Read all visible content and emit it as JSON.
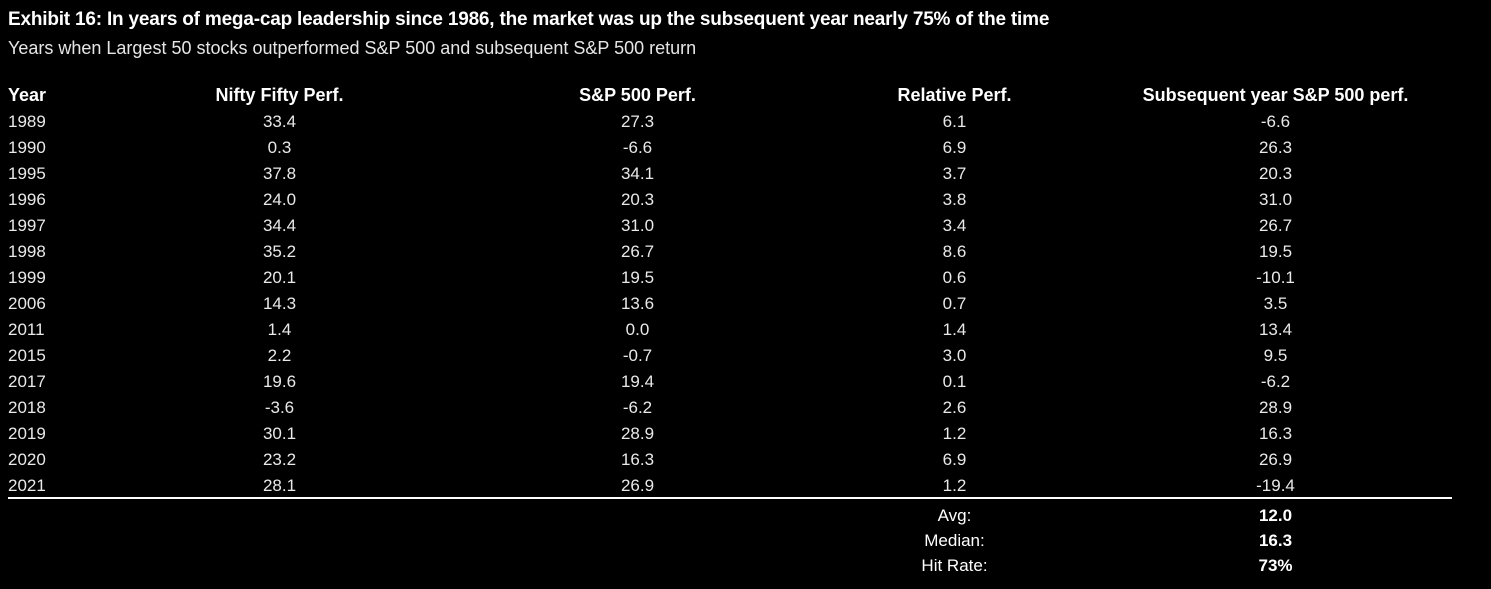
{
  "title": "Exhibit 16: In years of mega-cap leadership since 1986, the market was up the subsequent year nearly 75% of the time",
  "subtitle": "Years when Largest 50 stocks outperformed S&P 500 and subsequent S&P 500 return",
  "columns": [
    "Year",
    "Nifty Fifty Perf.",
    "S&P 500 Perf.",
    "Relative Perf.",
    "Subsequent year S&P 500 perf."
  ],
  "rows": [
    [
      "1989",
      "33.4",
      "27.3",
      "6.1",
      "-6.6"
    ],
    [
      "1990",
      "0.3",
      "-6.6",
      "6.9",
      "26.3"
    ],
    [
      "1995",
      "37.8",
      "34.1",
      "3.7",
      "20.3"
    ],
    [
      "1996",
      "24.0",
      "20.3",
      "3.8",
      "31.0"
    ],
    [
      "1997",
      "34.4",
      "31.0",
      "3.4",
      "26.7"
    ],
    [
      "1998",
      "35.2",
      "26.7",
      "8.6",
      "19.5"
    ],
    [
      "1999",
      "20.1",
      "19.5",
      "0.6",
      "-10.1"
    ],
    [
      "2006",
      "14.3",
      "13.6",
      "0.7",
      "3.5"
    ],
    [
      "2011",
      "1.4",
      "0.0",
      "1.4",
      "13.4"
    ],
    [
      "2015",
      "2.2",
      "-0.7",
      "3.0",
      "9.5"
    ],
    [
      "2017",
      "19.6",
      "19.4",
      "0.1",
      "-6.2"
    ],
    [
      "2018",
      "-3.6",
      "-6.2",
      "2.6",
      "28.9"
    ],
    [
      "2019",
      "30.1",
      "28.9",
      "1.2",
      "16.3"
    ],
    [
      "2020",
      "23.2",
      "16.3",
      "6.9",
      "26.9"
    ],
    [
      "2021",
      "28.1",
      "26.9",
      "1.2",
      "-19.4"
    ]
  ],
  "summary": [
    {
      "label": "Avg:",
      "value": "12.0"
    },
    {
      "label": "Median:",
      "value": "16.3"
    },
    {
      "label": "Hit Rate:",
      "value": "73%"
    }
  ]
}
